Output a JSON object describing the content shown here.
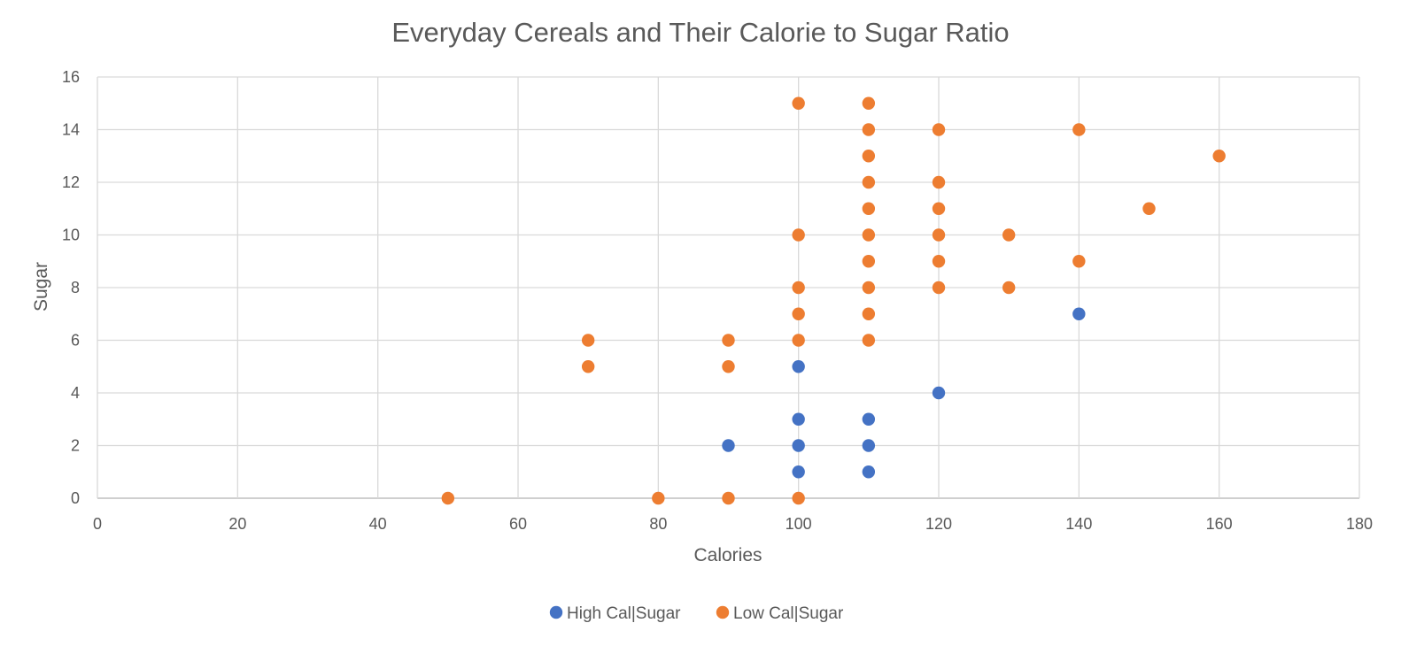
{
  "chart_data": {
    "type": "scatter",
    "title": "Everyday Cereals and Their Calorie to Sugar Ratio",
    "xlabel": "Calories",
    "ylabel": "Sugar",
    "xlim": [
      0,
      180
    ],
    "ylim": [
      0,
      16
    ],
    "x_ticks": [
      0,
      20,
      40,
      60,
      80,
      100,
      120,
      140,
      160,
      180
    ],
    "y_ticks": [
      0,
      2,
      4,
      6,
      8,
      10,
      12,
      14,
      16
    ],
    "grid": true,
    "legend_position": "bottom",
    "series": [
      {
        "name": "High Cal|Sugar",
        "color": "#4472C4",
        "points": [
          [
            90,
            2
          ],
          [
            100,
            1
          ],
          [
            100,
            2
          ],
          [
            100,
            3
          ],
          [
            100,
            5
          ],
          [
            110,
            1
          ],
          [
            110,
            2
          ],
          [
            110,
            3
          ],
          [
            120,
            4
          ],
          [
            140,
            7
          ]
        ]
      },
      {
        "name": "Low Cal|Sugar",
        "color": "#ED7D31",
        "points": [
          [
            50,
            0
          ],
          [
            80,
            0
          ],
          [
            90,
            0
          ],
          [
            100,
            0
          ],
          [
            70,
            5
          ],
          [
            70,
            6
          ],
          [
            90,
            5
          ],
          [
            90,
            6
          ],
          [
            100,
            6
          ],
          [
            100,
            7
          ],
          [
            100,
            8
          ],
          [
            100,
            10
          ],
          [
            100,
            15
          ],
          [
            110,
            6
          ],
          [
            110,
            7
          ],
          [
            110,
            8
          ],
          [
            110,
            9
          ],
          [
            110,
            10
          ],
          [
            110,
            11
          ],
          [
            110,
            12
          ],
          [
            110,
            13
          ],
          [
            110,
            14
          ],
          [
            110,
            15
          ],
          [
            120,
            8
          ],
          [
            120,
            9
          ],
          [
            120,
            10
          ],
          [
            120,
            11
          ],
          [
            120,
            12
          ],
          [
            120,
            14
          ],
          [
            130,
            8
          ],
          [
            130,
            10
          ],
          [
            140,
            9
          ],
          [
            140,
            14
          ],
          [
            150,
            11
          ],
          [
            160,
            13
          ]
        ]
      }
    ]
  }
}
